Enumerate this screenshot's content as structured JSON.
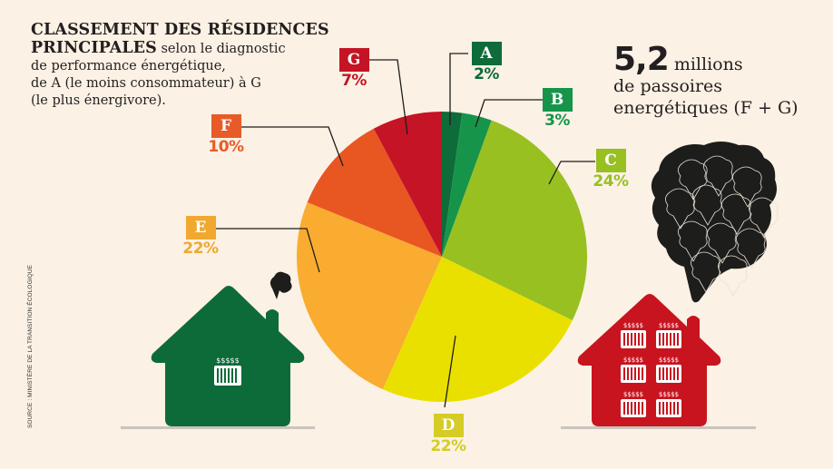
{
  "title": {
    "bold": "CLASSEMENT DES RÉSIDENCES PRINCIPALES",
    "bold_line1": "CLASSEMENT DES RÉSIDENCES",
    "bold_line2": "PRINCIPALES",
    "regular_inline": " selon le diagnostic",
    "regular_line2": "de performance énergétique,",
    "regular_line3": "de A (le moins consommateur) à G",
    "regular_line4": "(le plus énergivore)."
  },
  "stat": {
    "value": "5,2",
    "unit": " millions",
    "line2": "de passoires",
    "line3": "energétiques (F + G)"
  },
  "source": "SOURCE : MINISTÈRE DE LA TRANSITION ÉCOLOGIQUE",
  "colors": {
    "background": "#fbf1e4",
    "A": "#0e6b3a",
    "B": "#16954a",
    "C": "#98c021",
    "D": "#e9e000",
    "E": "#f9ac30",
    "F": "#e85622",
    "G": "#c41425",
    "green_house": "#0d6b3a",
    "red_house": "#c8141f",
    "smoke": "#1d1d1b"
  },
  "chart_data": {
    "type": "pie",
    "title": "Classement des résidences principales selon le diagnostic de performance énergétique, de A (le moins consommateur) à G (le plus énergivore)",
    "categories": [
      "A",
      "B",
      "C",
      "D",
      "E",
      "F",
      "G"
    ],
    "values": [
      2,
      3,
      24,
      22,
      22,
      10,
      7
    ],
    "unit": "%",
    "value_labels": [
      "2%",
      "3%",
      "24%",
      "22%",
      "22%",
      "10%",
      "7%"
    ],
    "colors": [
      "#0e6b3a",
      "#16954a",
      "#98c021",
      "#e9e000",
      "#f9ac30",
      "#e85622",
      "#c41425"
    ],
    "start_angle_deg": 0,
    "direction": "clockwise",
    "annotation": "5,2 millions de passoires energétiques (F + G)",
    "source": "Source : Ministère de la Transition écologique",
    "legend": "none (callout labels)"
  },
  "labels": [
    {
      "letter": "A",
      "pct": "2%"
    },
    {
      "letter": "B",
      "pct": "3%"
    },
    {
      "letter": "C",
      "pct": "24%"
    },
    {
      "letter": "D",
      "pct": "22%"
    },
    {
      "letter": "E",
      "pct": "22%"
    },
    {
      "letter": "F",
      "pct": "10%"
    },
    {
      "letter": "G",
      "pct": "7%"
    }
  ],
  "icons": {
    "green_house": "house-with-one-radiator-icon",
    "red_house": "house-with-six-radiators-icon",
    "small_smoke": "small-smoke-cloud-icon",
    "big_smoke": "large-smoke-cloud-icon",
    "radiator": "radiator-icon"
  }
}
